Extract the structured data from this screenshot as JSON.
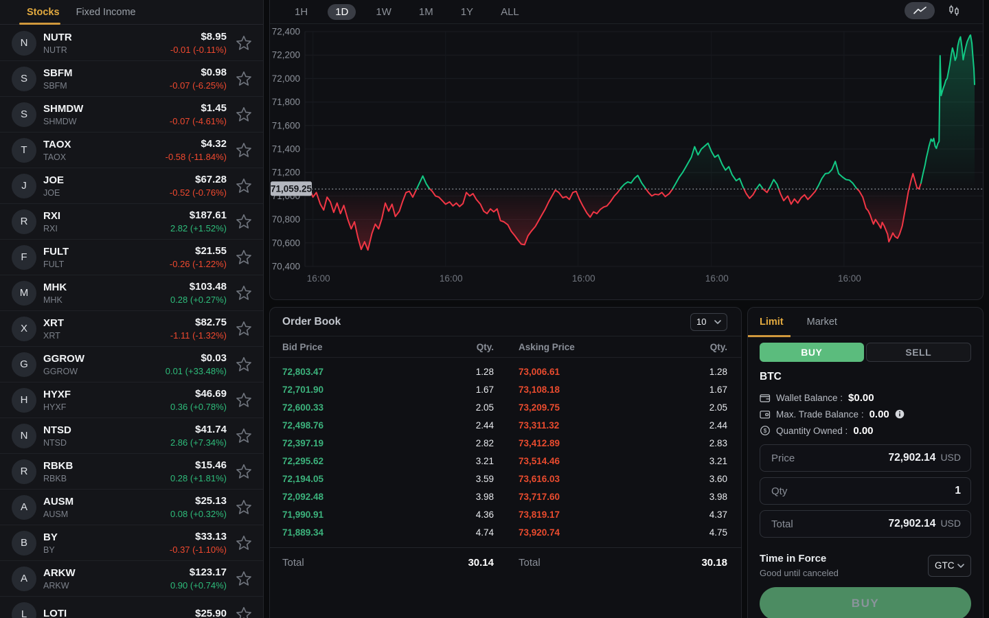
{
  "sidebar": {
    "tabs": [
      {
        "label": "Stocks",
        "active": true
      },
      {
        "label": "Fixed Income",
        "active": false
      }
    ],
    "stocks": [
      {
        "letter": "N",
        "symbol": "NUTR",
        "name": "NUTR",
        "price": "$8.95",
        "change": "-0.01 (-0.11%)",
        "direction": "down"
      },
      {
        "letter": "S",
        "symbol": "SBFM",
        "name": "SBFM",
        "price": "$0.98",
        "change": "-0.07 (-6.25%)",
        "direction": "down"
      },
      {
        "letter": "S",
        "symbol": "SHMDW",
        "name": "SHMDW",
        "price": "$1.45",
        "change": "-0.07 (-4.61%)",
        "direction": "down"
      },
      {
        "letter": "T",
        "symbol": "TAOX",
        "name": "TAOX",
        "price": "$4.32",
        "change": "-0.58 (-11.84%)",
        "direction": "down"
      },
      {
        "letter": "J",
        "symbol": "JOE",
        "name": "JOE",
        "price": "$67.28",
        "change": "-0.52 (-0.76%)",
        "direction": "down"
      },
      {
        "letter": "R",
        "symbol": "RXI",
        "name": "RXI",
        "price": "$187.61",
        "change": "2.82 (+1.52%)",
        "direction": "up"
      },
      {
        "letter": "F",
        "symbol": "FULT",
        "name": "FULT",
        "price": "$21.55",
        "change": "-0.26 (-1.22%)",
        "direction": "down"
      },
      {
        "letter": "M",
        "symbol": "MHK",
        "name": "MHK",
        "price": "$103.48",
        "change": "0.28 (+0.27%)",
        "direction": "up"
      },
      {
        "letter": "X",
        "symbol": "XRT",
        "name": "XRT",
        "price": "$82.75",
        "change": "-1.11 (-1.32%)",
        "direction": "down"
      },
      {
        "letter": "G",
        "symbol": "GGROW",
        "name": "GGROW",
        "price": "$0.03",
        "change": "0.01 (+33.48%)",
        "direction": "up"
      },
      {
        "letter": "H",
        "symbol": "HYXF",
        "name": "HYXF",
        "price": "$46.69",
        "change": "0.36 (+0.78%)",
        "direction": "up"
      },
      {
        "letter": "N",
        "symbol": "NTSD",
        "name": "NTSD",
        "price": "$41.74",
        "change": "2.86 (+7.34%)",
        "direction": "up"
      },
      {
        "letter": "R",
        "symbol": "RBKB",
        "name": "RBKB",
        "price": "$15.46",
        "change": "0.28 (+1.81%)",
        "direction": "up"
      },
      {
        "letter": "A",
        "symbol": "AUSM",
        "name": "AUSM",
        "price": "$25.13",
        "change": "0.08 (+0.32%)",
        "direction": "up"
      },
      {
        "letter": "B",
        "symbol": "BY",
        "name": "BY",
        "price": "$33.13",
        "change": "-0.37 (-1.10%)",
        "direction": "down"
      },
      {
        "letter": "A",
        "symbol": "ARKW",
        "name": "ARKW",
        "price": "$123.17",
        "change": "0.90 (+0.74%)",
        "direction": "up"
      },
      {
        "letter": "L",
        "symbol": "LOTI",
        "name": "",
        "price": "$25.90",
        "change": "",
        "direction": "none"
      }
    ]
  },
  "chart": {
    "ranges": [
      "1H",
      "1D",
      "1W",
      "1M",
      "1Y",
      "ALL"
    ],
    "active_range": "1D",
    "toolbar": [
      {
        "name": "line-chart-icon",
        "active": true
      },
      {
        "name": "candlestick-icon",
        "active": false
      }
    ]
  },
  "chart_data": {
    "type": "line",
    "ylim": [
      70400,
      72400
    ],
    "y_ticks": [
      72400,
      72200,
      72000,
      71800,
      71600,
      71400,
      71200,
      71000,
      70800,
      70600,
      70400
    ],
    "y_tick_labels": [
      "72,400",
      "72,200",
      "72,000",
      "71,800",
      "71,600",
      "71,400",
      "71,200",
      "71,000",
      "70,800",
      "70,600",
      "70,400"
    ],
    "x_ticks": [
      {
        "f": 0.012,
        "label": "16:00"
      },
      {
        "f": 0.21,
        "label": "16:00"
      },
      {
        "f": 0.408,
        "label": "16:00"
      },
      {
        "f": 0.607,
        "label": "16:00"
      },
      {
        "f": 0.805,
        "label": "16:00"
      }
    ],
    "ref_price": 71059.25,
    "ref_label": "71,059.25",
    "colors": {
      "up": "#12c984",
      "down": "#f23645",
      "ref": "#9aa0a8"
    },
    "force_down_ranges": [
      [
        0.896,
        0.921
      ]
    ],
    "series": [
      [
        0,
        71062
      ],
      [
        0.007,
        71060
      ],
      [
        0.012,
        70990
      ],
      [
        0.017,
        71030
      ],
      [
        0.023,
        70930
      ],
      [
        0.028,
        70880
      ],
      [
        0.033,
        70990
      ],
      [
        0.038,
        70950
      ],
      [
        0.043,
        70860
      ],
      [
        0.048,
        70940
      ],
      [
        0.053,
        70850
      ],
      [
        0.058,
        70920
      ],
      [
        0.064,
        70800
      ],
      [
        0.069,
        70720
      ],
      [
        0.074,
        70780
      ],
      [
        0.079,
        70650
      ],
      [
        0.084,
        70545
      ],
      [
        0.089,
        70610
      ],
      [
        0.094,
        70540
      ],
      [
        0.1,
        70680
      ],
      [
        0.105,
        70760
      ],
      [
        0.11,
        70720
      ],
      [
        0.115,
        70810
      ],
      [
        0.12,
        70940
      ],
      [
        0.125,
        70870
      ],
      [
        0.13,
        70930
      ],
      [
        0.135,
        70825
      ],
      [
        0.141,
        70870
      ],
      [
        0.146,
        70955
      ],
      [
        0.151,
        71030
      ],
      [
        0.156,
        71040
      ],
      [
        0.161,
        70990
      ],
      [
        0.166,
        71050
      ],
      [
        0.176,
        71170
      ],
      [
        0.181,
        71105
      ],
      [
        0.185,
        71070
      ],
      [
        0.19,
        71040
      ],
      [
        0.195,
        71000
      ],
      [
        0.2,
        70990
      ],
      [
        0.205,
        70960
      ],
      [
        0.21,
        70930
      ],
      [
        0.216,
        70950
      ],
      [
        0.221,
        70915
      ],
      [
        0.226,
        70940
      ],
      [
        0.231,
        70910
      ],
      [
        0.236,
        70935
      ],
      [
        0.241,
        71030
      ],
      [
        0.246,
        71000
      ],
      [
        0.251,
        71020
      ],
      [
        0.256,
        70970
      ],
      [
        0.262,
        70930
      ],
      [
        0.267,
        70870
      ],
      [
        0.272,
        70850
      ],
      [
        0.277,
        70890
      ],
      [
        0.282,
        70865
      ],
      [
        0.287,
        70890
      ],
      [
        0.292,
        70790
      ],
      [
        0.297,
        70780
      ],
      [
        0.303,
        70755
      ],
      [
        0.308,
        70700
      ],
      [
        0.313,
        70665
      ],
      [
        0.318,
        70625
      ],
      [
        0.323,
        70590
      ],
      [
        0.328,
        70585
      ],
      [
        0.333,
        70660
      ],
      [
        0.338,
        70700
      ],
      [
        0.344,
        70740
      ],
      [
        0.349,
        70790
      ],
      [
        0.354,
        70840
      ],
      [
        0.359,
        70890
      ],
      [
        0.364,
        70950
      ],
      [
        0.369,
        71000
      ],
      [
        0.374,
        71050
      ],
      [
        0.379,
        71030
      ],
      [
        0.385,
        70985
      ],
      [
        0.39,
        70995
      ],
      [
        0.395,
        70970
      ],
      [
        0.4,
        71030
      ],
      [
        0.405,
        71040
      ],
      [
        0.41,
        70970
      ],
      [
        0.415,
        70915
      ],
      [
        0.421,
        70855
      ],
      [
        0.426,
        70820
      ],
      [
        0.431,
        70865
      ],
      [
        0.436,
        70850
      ],
      [
        0.441,
        70885
      ],
      [
        0.446,
        70905
      ],
      [
        0.451,
        70915
      ],
      [
        0.456,
        70950
      ],
      [
        0.462,
        71000
      ],
      [
        0.467,
        71030
      ],
      [
        0.472,
        71070
      ],
      [
        0.477,
        71100
      ],
      [
        0.482,
        71120
      ],
      [
        0.487,
        71110
      ],
      [
        0.492,
        71150
      ],
      [
        0.497,
        71175
      ],
      [
        0.503,
        71110
      ],
      [
        0.508,
        71070
      ],
      [
        0.513,
        71030
      ],
      [
        0.518,
        71000
      ],
      [
        0.523,
        71015
      ],
      [
        0.528,
        71010
      ],
      [
        0.533,
        71030
      ],
      [
        0.538,
        70995
      ],
      [
        0.544,
        71020
      ],
      [
        0.549,
        71060
      ],
      [
        0.554,
        71110
      ],
      [
        0.559,
        71160
      ],
      [
        0.564,
        71200
      ],
      [
        0.569,
        71250
      ],
      [
        0.577,
        71330
      ],
      [
        0.582,
        71420
      ],
      [
        0.587,
        71350
      ],
      [
        0.592,
        71400
      ],
      [
        0.602,
        71450
      ],
      [
        0.607,
        71380
      ],
      [
        0.612,
        71330
      ],
      [
        0.617,
        71350
      ],
      [
        0.623,
        71270
      ],
      [
        0.628,
        71220
      ],
      [
        0.633,
        71250
      ],
      [
        0.638,
        71180
      ],
      [
        0.644,
        71130
      ],
      [
        0.649,
        71150
      ],
      [
        0.654,
        71080
      ],
      [
        0.659,
        71020
      ],
      [
        0.664,
        70980
      ],
      [
        0.669,
        71010
      ],
      [
        0.674,
        71060
      ],
      [
        0.679,
        71100
      ],
      [
        0.684,
        71060
      ],
      [
        0.69,
        71030
      ],
      [
        0.695,
        71080
      ],
      [
        0.7,
        71140
      ],
      [
        0.705,
        71100
      ],
      [
        0.71,
        71020
      ],
      [
        0.715,
        70960
      ],
      [
        0.721,
        71000
      ],
      [
        0.726,
        70930
      ],
      [
        0.731,
        70975
      ],
      [
        0.736,
        70940
      ],
      [
        0.741,
        70985
      ],
      [
        0.746,
        71010
      ],
      [
        0.751,
        70970
      ],
      [
        0.756,
        71000
      ],
      [
        0.762,
        71040
      ],
      [
        0.767,
        71090
      ],
      [
        0.772,
        71150
      ],
      [
        0.777,
        71190
      ],
      [
        0.782,
        71195
      ],
      [
        0.787,
        71225
      ],
      [
        0.792,
        71295
      ],
      [
        0.797,
        71190
      ],
      [
        0.803,
        71160
      ],
      [
        0.808,
        71140
      ],
      [
        0.813,
        71135
      ],
      [
        0.818,
        71110
      ],
      [
        0.823,
        71070
      ],
      [
        0.828,
        71040
      ],
      [
        0.833,
        70990
      ],
      [
        0.838,
        70895
      ],
      [
        0.841,
        70875
      ],
      [
        0.844,
        70840
      ],
      [
        0.847,
        70790
      ],
      [
        0.849,
        70760
      ],
      [
        0.852,
        70800
      ],
      [
        0.857,
        70755
      ],
      [
        0.86,
        70725
      ],
      [
        0.862,
        70775
      ],
      [
        0.865,
        70745
      ],
      [
        0.87,
        70675
      ],
      [
        0.872,
        70610
      ],
      [
        0.875,
        70645
      ],
      [
        0.878,
        70685
      ],
      [
        0.881,
        70655
      ],
      [
        0.885,
        70640
      ],
      [
        0.888,
        70675
      ],
      [
        0.892,
        70745
      ],
      [
        0.895,
        70840
      ],
      [
        0.898,
        70935
      ],
      [
        0.901,
        71035
      ],
      [
        0.905,
        71130
      ],
      [
        0.908,
        71190
      ],
      [
        0.911,
        71130
      ],
      [
        0.914,
        71070
      ],
      [
        0.917,
        71060
      ],
      [
        0.92,
        71110
      ],
      [
        0.923,
        71190
      ],
      [
        0.926,
        71265
      ],
      [
        0.928,
        71325
      ],
      [
        0.93,
        71375
      ],
      [
        0.932,
        71425
      ],
      [
        0.935,
        71485
      ],
      [
        0.937,
        71465
      ],
      [
        0.939,
        71490
      ],
      [
        0.941,
        71425
      ],
      [
        0.943,
        71405
      ],
      [
        0.945,
        71445
      ],
      [
        0.947,
        71465
      ],
      [
        0.9485,
        72195
      ],
      [
        0.95,
        71855
      ],
      [
        0.953,
        71915
      ],
      [
        0.955,
        71945
      ],
      [
        0.957,
        71985
      ],
      [
        0.959,
        72000
      ],
      [
        0.961,
        72060
      ],
      [
        0.963,
        72120
      ],
      [
        0.965,
        72200
      ],
      [
        0.967,
        72260
      ],
      [
        0.969,
        72220
      ],
      [
        0.971,
        72155
      ],
      [
        0.973,
        72185
      ],
      [
        0.975,
        72280
      ],
      [
        0.977,
        72330
      ],
      [
        0.979,
        72355
      ],
      [
        0.981,
        72270
      ],
      [
        0.983,
        72160
      ],
      [
        0.985,
        72220
      ],
      [
        0.987,
        72270
      ],
      [
        0.989,
        72315
      ],
      [
        0.991,
        72340
      ],
      [
        0.993,
        72365
      ],
      [
        0.994,
        72370
      ],
      [
        0.996,
        72300
      ],
      [
        0.997,
        72220
      ],
      [
        0.998,
        72155
      ],
      [
        0.999,
        72085
      ],
      [
        1,
        71950
      ]
    ]
  },
  "order_book": {
    "title": "Order Book",
    "depth_value": "10",
    "headers": [
      "Bid Price",
      "Qty.",
      "Asking Price",
      "Qty."
    ],
    "rows": [
      [
        "72,803.47",
        "1.28",
        "73,006.61",
        "1.28"
      ],
      [
        "72,701.90",
        "1.67",
        "73,108.18",
        "1.67"
      ],
      [
        "72,600.33",
        "2.05",
        "73,209.75",
        "2.05"
      ],
      [
        "72,498.76",
        "2.44",
        "73,311.32",
        "2.44"
      ],
      [
        "72,397.19",
        "2.82",
        "73,412.89",
        "2.83"
      ],
      [
        "72,295.62",
        "3.21",
        "73,514.46",
        "3.21"
      ],
      [
        "72,194.05",
        "3.59",
        "73,616.03",
        "3.60"
      ],
      [
        "72,092.48",
        "3.98",
        "73,717.60",
        "3.98"
      ],
      [
        "71,990.91",
        "4.36",
        "73,819.17",
        "4.37"
      ],
      [
        "71,889.34",
        "4.74",
        "73,920.74",
        "4.75"
      ]
    ],
    "total_label": "Total",
    "bid_total": "30.14",
    "ask_total": "30.18"
  },
  "trade_panel": {
    "tabs": [
      {
        "label": "Limit",
        "active": true
      },
      {
        "label": "Market",
        "active": false
      }
    ],
    "buy_label": "BUY",
    "sell_label": "SELL",
    "asset": "BTC",
    "balances": [
      {
        "icon": "wallet-icon",
        "label": "Wallet Balance :",
        "value": "$0.00",
        "info": false
      },
      {
        "icon": "trade-balance-icon",
        "label": "Max. Trade Balance :",
        "value": "0.00",
        "info": true
      },
      {
        "icon": "coins-icon",
        "label": "Quantity Owned :",
        "value": "0.00",
        "info": false
      }
    ],
    "fields": [
      {
        "label": "Price",
        "value": "72,902.14",
        "unit": "USD"
      },
      {
        "label": "Qty",
        "value": "1",
        "unit": ""
      },
      {
        "label": "Total",
        "value": "72,902.14",
        "unit": "USD"
      }
    ],
    "time_in_force": {
      "label": "Time in Force",
      "sublabel": "Good until canceled",
      "value": "GTC"
    },
    "submit_label": "BUY"
  }
}
